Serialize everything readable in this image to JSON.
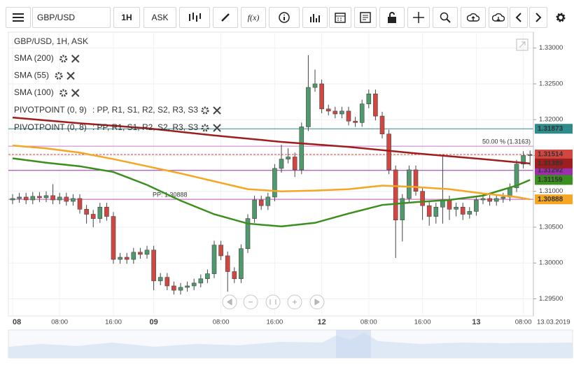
{
  "toolbar": {
    "symbol": "GBP/USD",
    "interval": "1H",
    "side": "ASK",
    "function_label": "f(x)"
  },
  "chart_data": {
    "type": "candlestick",
    "title": "GBP/USD, 1H, ASK",
    "categories": [
      "08",
      null,
      null,
      null,
      null,
      null,
      null,
      "08:00",
      null,
      null,
      null,
      null,
      null,
      null,
      null,
      "16:00",
      null,
      null,
      null,
      null,
      null,
      "09",
      null,
      null,
      null,
      null,
      null,
      null,
      null,
      null,
      null,
      "08:00",
      null,
      null,
      null,
      null,
      null,
      null,
      null,
      "16:00",
      null,
      null,
      null,
      null,
      null,
      null,
      "12",
      null,
      null,
      null,
      null,
      null,
      null,
      "08:00",
      null,
      null,
      null,
      null,
      null,
      null,
      null,
      "16:00",
      null,
      null,
      null,
      null,
      null,
      null,
      null,
      "13",
      null,
      null,
      null,
      null,
      null,
      null,
      "08:00",
      null
    ],
    "date_label": "13.03.2019",
    "open": [
      1.3088,
      1.309,
      1.3092,
      1.3088,
      1.3093,
      1.3091,
      1.3094,
      1.3088,
      1.3092,
      1.3086,
      1.309,
      1.3075,
      1.3068,
      1.3062,
      1.3078,
      1.3065,
      1.3005,
      1.3008,
      1.3005,
      1.3015,
      1.3012,
      1.3018,
      1.2975,
      1.298,
      1.2968,
      1.2962,
      1.2966,
      1.2968,
      1.2972,
      1.2978,
      1.2985,
      1.3025,
      1.301,
      1.2988,
      1.2978,
      1.302,
      1.3062,
      1.3088,
      1.308,
      1.3092,
      1.3132,
      1.3145,
      1.3148,
      1.313,
      1.319,
      1.3245,
      1.325,
      1.3215,
      1.3212,
      1.3208,
      1.3212,
      1.3198,
      1.3196,
      1.3222,
      1.3236,
      1.3205,
      1.318,
      1.313,
      1.306,
      1.309,
      1.313,
      1.31,
      1.308,
      1.3065,
      1.3078,
      1.3088,
      1.3075,
      1.3078,
      1.3068,
      1.3072,
      1.3088,
      1.309,
      1.3086,
      1.309,
      1.3092,
      1.3105,
      1.3138,
      1.315
    ],
    "high": [
      1.3096,
      1.3098,
      1.3098,
      1.3099,
      1.3099,
      1.31,
      1.311,
      1.3098,
      1.3098,
      1.3096,
      1.3096,
      1.3081,
      1.3074,
      1.3084,
      1.3084,
      1.3071,
      1.3014,
      1.3014,
      1.3021,
      1.3021,
      1.3024,
      1.3024,
      1.2986,
      1.2986,
      1.2974,
      1.2972,
      1.2974,
      1.2978,
      1.2984,
      1.2991,
      1.3031,
      1.3031,
      1.3016,
      1.2994,
      1.3026,
      1.3068,
      1.3094,
      1.3094,
      1.3098,
      1.3138,
      1.3165,
      1.316,
      1.3154,
      1.3196,
      1.329,
      1.327,
      1.3256,
      1.3221,
      1.3218,
      1.3218,
      1.3218,
      1.3204,
      1.3228,
      1.3242,
      1.3242,
      1.3211,
      1.3186,
      1.3136,
      1.3096,
      1.3136,
      1.3136,
      1.3106,
      1.3086,
      1.3084,
      1.315,
      1.3094,
      1.3084,
      1.3084,
      1.3078,
      1.3094,
      1.3096,
      1.3096,
      1.3096,
      1.3098,
      1.3111,
      1.3144,
      1.3156,
      1.3157
    ],
    "low": [
      1.3082,
      1.3084,
      1.3082,
      1.3082,
      1.3085,
      1.3085,
      1.3082,
      1.3082,
      1.308,
      1.308,
      1.3069,
      1.3055,
      1.305,
      1.3056,
      1.3059,
      1.2999,
      1.2999,
      1.2999,
      1.2999,
      1.3006,
      1.3006,
      1.2962,
      1.2969,
      1.2962,
      1.2956,
      1.2956,
      1.296,
      1.2962,
      1.2966,
      1.2972,
      1.2979,
      1.3004,
      1.296,
      1.2972,
      1.2972,
      1.3014,
      1.3056,
      1.3074,
      1.3074,
      1.3086,
      1.3126,
      1.3139,
      1.312,
      1.3124,
      1.3184,
      1.3239,
      1.3209,
      1.3206,
      1.3202,
      1.3202,
      1.3192,
      1.319,
      1.319,
      1.3216,
      1.3199,
      1.3174,
      1.3124,
      1.3007,
      1.303,
      1.3084,
      1.3094,
      1.306,
      1.3052,
      1.3055,
      1.3055,
      1.306,
      1.3065,
      1.306,
      1.3062,
      1.3066,
      1.3082,
      1.308,
      1.308,
      1.3084,
      1.3086,
      1.3099,
      1.3132,
      1.3136
    ],
    "close": [
      1.309,
      1.3092,
      1.3088,
      1.3093,
      1.3091,
      1.3094,
      1.3088,
      1.3092,
      1.3086,
      1.309,
      1.3075,
      1.3068,
      1.3062,
      1.3078,
      1.3065,
      1.3005,
      1.3008,
      1.3005,
      1.3015,
      1.3012,
      1.3018,
      1.2975,
      1.298,
      1.2968,
      1.2962,
      1.2966,
      1.2968,
      1.2972,
      1.2978,
      1.2985,
      1.3025,
      1.301,
      1.2988,
      1.2978,
      1.302,
      1.3062,
      1.3088,
      1.308,
      1.3092,
      1.3132,
      1.3145,
      1.3148,
      1.313,
      1.319,
      1.3245,
      1.325,
      1.3215,
      1.3212,
      1.3208,
      1.3212,
      1.3198,
      1.3196,
      1.3222,
      1.3236,
      1.3205,
      1.318,
      1.313,
      1.306,
      1.309,
      1.313,
      1.31,
      1.308,
      1.3065,
      1.3078,
      1.3088,
      1.3075,
      1.3078,
      1.3068,
      1.3072,
      1.3088,
      1.309,
      1.3086,
      1.309,
      1.3092,
      1.3105,
      1.3138,
      1.315,
      1.3151
    ],
    "up_color": "#4e9a6c",
    "down_color": "#d2463f",
    "ylim": [
      1.2928,
      1.3328
    ],
    "yticks": [
      {
        "value": 1.295,
        "label": "1.29500"
      },
      {
        "value": 1.3,
        "label": "1.30000"
      },
      {
        "value": 1.305,
        "label": "1.30500"
      },
      {
        "value": 1.31,
        "label": "1.31000"
      },
      {
        "value": 1.315,
        "label": "1.31500"
      },
      {
        "value": 1.32,
        "label": "1.32000"
      },
      {
        "value": 1.325,
        "label": "1.32500"
      },
      {
        "value": 1.33,
        "label": "1.33000"
      }
    ],
    "grid": true,
    "series": [
      {
        "name": "SMA (200)",
        "color": "#9e1d1d",
        "x": [
          0,
          10,
          20,
          30,
          40,
          50,
          60,
          70,
          77
        ],
        "values": [
          1.3203,
          1.3195,
          1.3188,
          1.3178,
          1.3169,
          1.3162,
          1.3153,
          1.3145,
          1.31389
        ],
        "last_label": "1.31389"
      },
      {
        "name": "SMA (55)",
        "color": "#3b8f1f",
        "x": [
          0,
          5,
          10,
          15,
          20,
          25,
          30,
          35,
          40,
          45,
          50,
          55,
          60,
          65,
          70,
          75,
          77
        ],
        "values": [
          1.3146,
          1.314,
          1.3135,
          1.3127,
          1.3109,
          1.3087,
          1.3068,
          1.3055,
          1.3051,
          1.3056,
          1.3069,
          1.3081,
          1.3085,
          1.3088,
          1.3094,
          1.3108,
          1.31159
        ],
        "last_label": "1.31159"
      },
      {
        "name": "SMA (100)",
        "color": "#f5a623",
        "x": [
          0,
          5,
          10,
          15,
          20,
          25,
          30,
          35,
          40,
          45,
          50,
          55,
          60,
          65,
          70,
          75,
          77
        ],
        "values": [
          1.3164,
          1.316,
          1.3154,
          1.3145,
          1.3135,
          1.3125,
          1.3114,
          1.3103,
          1.31,
          1.3101,
          1.3103,
          1.3108,
          1.3106,
          1.3103,
          1.3097,
          1.3092,
          1.30888
        ],
        "last_label": "1.30888"
      }
    ],
    "indicators": [
      {
        "name": "PIVOTPOINT (0, 9)",
        "levels": ": PP, R1, S1, R2, S2, R3, S3"
      },
      {
        "name": "PIVOTPOINT (0, 8)",
        "levels": ": PP, R1, S1, R2, S2, R3, S3"
      }
    ],
    "levels": [
      {
        "value": 1.31873,
        "color": "#2e8b8b",
        "label": "1.31873"
      },
      {
        "value": 1.3163,
        "color": "#c77dc9",
        "text": "50.00 % (1.3163)"
      },
      {
        "value": 1.31514,
        "color": "#d2463f",
        "label": "1.31514",
        "dashed": true
      },
      {
        "value": 1.31292,
        "color": "#9b2fae",
        "label": "1.31292"
      },
      {
        "value": 1.30888,
        "color": "#c34fb5",
        "text": "PP: 1.30888"
      }
    ]
  }
}
